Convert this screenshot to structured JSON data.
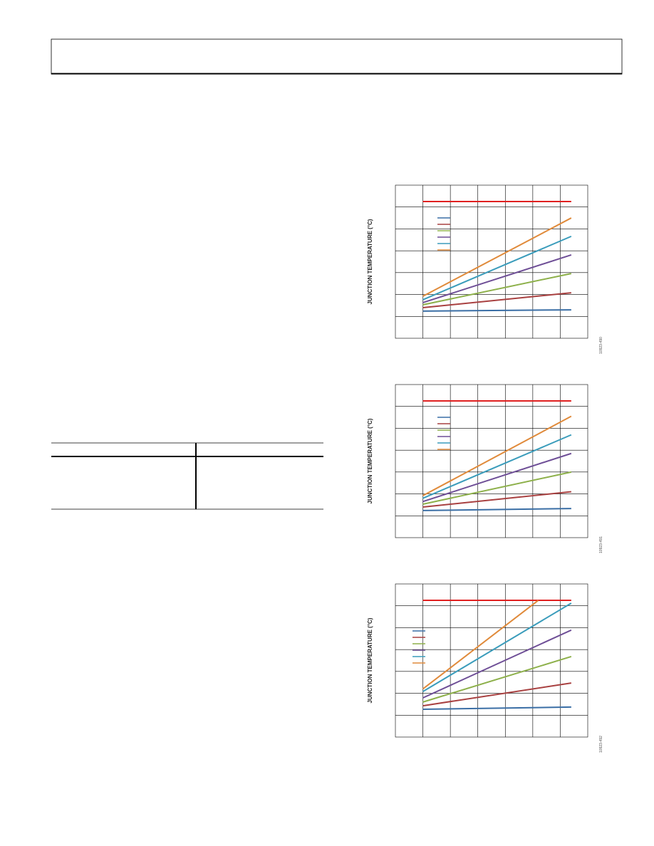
{
  "charts": [
    {
      "type": "line",
      "ylabel": "JUNCTION TEMPERATURE (°C)",
      "figure_id": "10923-490",
      "xlim": [
        0,
        7
      ],
      "ylim": [
        0,
        7
      ],
      "grid_x": [
        1,
        2,
        3,
        4,
        5,
        6
      ],
      "grid_y": [
        1,
        2,
        3,
        4,
        5,
        6
      ],
      "series": [
        {
          "color": "#e02020",
          "x": [
            1,
            6.4
          ],
          "values": [
            6.25,
            6.25
          ]
        },
        {
          "color": "#3a6ea5",
          "x": [
            1,
            6.4
          ],
          "values": [
            1.24,
            1.3
          ]
        },
        {
          "color": "#a84040",
          "x": [
            1,
            6.4
          ],
          "values": [
            1.4,
            2.08
          ]
        },
        {
          "color": "#8db04a",
          "x": [
            1,
            6.4
          ],
          "values": [
            1.53,
            2.96
          ]
        },
        {
          "color": "#6e4e96",
          "x": [
            1,
            6.4
          ],
          "values": [
            1.63,
            3.81
          ]
        },
        {
          "color": "#3a9cbb",
          "x": [
            1,
            6.4
          ],
          "values": [
            1.76,
            4.66
          ]
        },
        {
          "color": "#e08a3a",
          "x": [
            1,
            6.4
          ],
          "values": [
            1.92,
            5.5
          ]
        }
      ]
    },
    {
      "type": "line",
      "ylabel": "JUNCTION TEMPERATURE (°C)",
      "figure_id": "10923-491",
      "xlim": [
        0,
        7
      ],
      "ylim": [
        0,
        7
      ],
      "grid_x": [
        1,
        2,
        3,
        4,
        5,
        6
      ],
      "grid_y": [
        1,
        2,
        3,
        4,
        5,
        6
      ],
      "series": [
        {
          "color": "#e02020",
          "x": [
            1,
            6.4
          ],
          "values": [
            6.25,
            6.25
          ]
        },
        {
          "color": "#3a6ea5",
          "x": [
            1,
            6.4
          ],
          "values": [
            1.24,
            1.33
          ]
        },
        {
          "color": "#a84040",
          "x": [
            1,
            6.4
          ],
          "values": [
            1.4,
            2.1
          ]
        },
        {
          "color": "#8db04a",
          "x": [
            1,
            6.4
          ],
          "values": [
            1.53,
            3.0
          ]
        },
        {
          "color": "#6e4e96",
          "x": [
            1,
            6.4
          ],
          "values": [
            1.65,
            3.85
          ]
        },
        {
          "color": "#3a9cbb",
          "x": [
            1,
            6.4
          ],
          "values": [
            1.8,
            4.7
          ]
        },
        {
          "color": "#e08a3a",
          "x": [
            1,
            6.4
          ],
          "values": [
            1.92,
            5.55
          ]
        }
      ]
    },
    {
      "type": "line",
      "ylabel": "JUNCTION TEMPERATURE (°C)",
      "figure_id": "10923-492",
      "xlim": [
        0,
        7
      ],
      "ylim": [
        0,
        7
      ],
      "grid_x": [
        1,
        2,
        3,
        4,
        5,
        6
      ],
      "grid_y": [
        1,
        2,
        3,
        4,
        5,
        6
      ],
      "series": [
        {
          "color": "#e02020",
          "x": [
            1,
            6.4
          ],
          "values": [
            6.25,
            6.25
          ]
        },
        {
          "color": "#3a6ea5",
          "x": [
            1,
            6.4
          ],
          "values": [
            1.27,
            1.37
          ]
        },
        {
          "color": "#a84040",
          "x": [
            1,
            6.4
          ],
          "values": [
            1.43,
            2.47
          ]
        },
        {
          "color": "#8db04a",
          "x": [
            1,
            6.4
          ],
          "values": [
            1.6,
            3.68
          ]
        },
        {
          "color": "#6e4e96",
          "x": [
            1,
            6.4
          ],
          "values": [
            1.79,
            4.89
          ]
        },
        {
          "color": "#3a9cbb",
          "x": [
            1,
            6.4
          ],
          "values": [
            2.08,
            6.12
          ]
        },
        {
          "color": "#e08a3a",
          "x": [
            1,
            5.2
          ],
          "values": [
            2.2,
            6.25
          ]
        }
      ]
    }
  ]
}
